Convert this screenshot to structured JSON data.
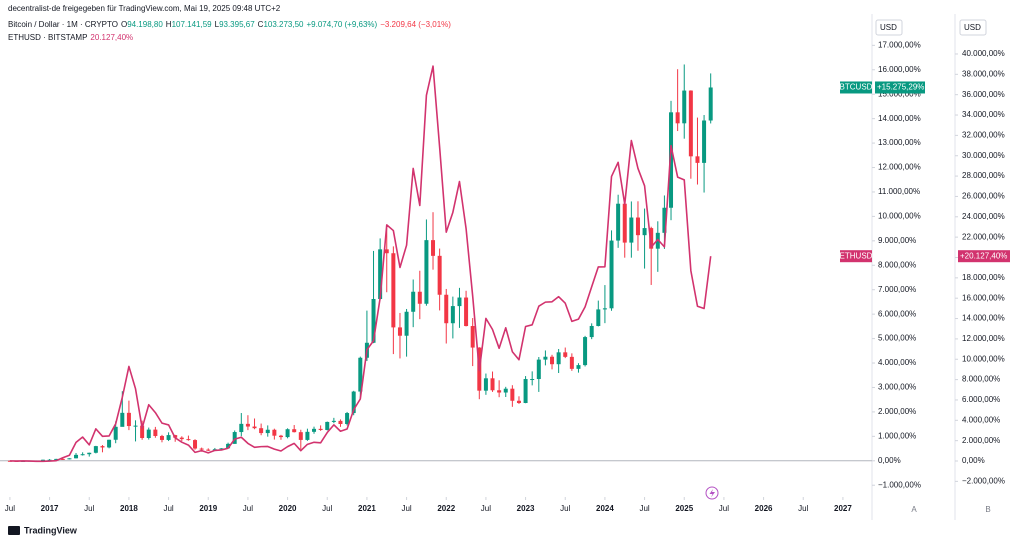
{
  "header": {
    "share": "decentralist-de freigegeben für TradingView.com, Mai 19, 2025 09:48 UTC+2",
    "symbol": "Bitcoin / Dollar · 1M · CRYPTO",
    "ohlc": [
      {
        "key": "O",
        "value": "94.198,80"
      },
      {
        "key": "H",
        "value": "107.141,59"
      },
      {
        "key": "L",
        "value": "93.395,67"
      },
      {
        "key": "C",
        "value": "103.273,50"
      }
    ],
    "change": "+9.074,70 (+9,63%)",
    "change2": "−3.209,64 (−3,01%)",
    "compare": "ETHUSD · BITSTAMP",
    "compare_value": "20.127,40%"
  },
  "axis_headers": [
    "USD",
    "USD"
  ],
  "axis_letters": [
    "A",
    "B"
  ],
  "footer": "TradingView",
  "chart_data": {
    "type": "candlestick",
    "xlim": [
      -1.5,
      130.4
    ],
    "xticks": [
      {
        "value": 0,
        "label": "Jul"
      },
      {
        "value": 6,
        "label": "2017"
      },
      {
        "value": 12,
        "label": "Jul"
      },
      {
        "value": 18,
        "label": "2018"
      },
      {
        "value": 24,
        "label": "Jul"
      },
      {
        "value": 30,
        "label": "2019"
      },
      {
        "value": 36,
        "label": "Jul"
      },
      {
        "value": 42,
        "label": "2020"
      },
      {
        "value": 48,
        "label": "Jul"
      },
      {
        "value": 54,
        "label": "2021"
      },
      {
        "value": 60,
        "label": "Jul"
      },
      {
        "value": 66,
        "label": "2022"
      },
      {
        "value": 72,
        "label": "Jul"
      },
      {
        "value": 78,
        "label": "2023"
      },
      {
        "value": 84,
        "label": "Jul"
      },
      {
        "value": 90,
        "label": "2024"
      },
      {
        "value": 96,
        "label": "Jul"
      },
      {
        "value": 102,
        "label": "2025"
      },
      {
        "value": 108,
        "label": "Jul"
      },
      {
        "value": 114,
        "label": "2026"
      },
      {
        "value": 120,
        "label": "Jul"
      },
      {
        "value": 126,
        "label": "2027"
      }
    ],
    "ylim": [
      -1400,
      17300
    ],
    "yticks": [
      {
        "value": -1000,
        "label": "−1.000,00%"
      },
      {
        "value": 0,
        "label": "0,00%"
      },
      {
        "value": 1000,
        "label": "1.000,00%"
      },
      {
        "value": 2000,
        "label": "2.000,00%"
      },
      {
        "value": 3000,
        "label": "3.000,00%"
      },
      {
        "value": 4000,
        "label": "4.000,00%"
      },
      {
        "value": 5000,
        "label": "5.000,00%"
      },
      {
        "value": 6000,
        "label": "6.000,00%"
      },
      {
        "value": 7000,
        "label": "7.000,00%"
      },
      {
        "value": 8000,
        "label": "8.000,00%"
      },
      {
        "value": 9000,
        "label": "9.000,00%"
      },
      {
        "value": 10000,
        "label": "10.000,00%"
      },
      {
        "value": 11000,
        "label": "11.000,00%"
      },
      {
        "value": 12000,
        "label": "12.000,00%"
      },
      {
        "value": 13000,
        "label": "13.000,00%"
      },
      {
        "value": 14000,
        "label": "14.000,00%"
      },
      {
        "value": 15000,
        "label": "15.000,00%"
      },
      {
        "value": 16000,
        "label": "16.000,00%"
      },
      {
        "value": 17000,
        "label": "17.000,00%"
      }
    ],
    "y2lim": [
      -3340,
      41570
    ],
    "y2ticks": [
      {
        "value": -2000,
        "label": "−2.000,00%"
      },
      {
        "value": 0,
        "label": "0,00%"
      },
      {
        "value": 2000,
        "label": "2.000,00%"
      },
      {
        "value": 4000,
        "label": "4.000,00%"
      },
      {
        "value": 6000,
        "label": "6.000,00%"
      },
      {
        "value": 8000,
        "label": "8.000,00%"
      },
      {
        "value": 10000,
        "label": "10.000,00%"
      },
      {
        "value": 12000,
        "label": "12.000,00%"
      },
      {
        "value": 14000,
        "label": "14.000,00%"
      },
      {
        "value": 16000,
        "label": "16.000,00%"
      },
      {
        "value": 18000,
        "label": "18.000,00%"
      },
      {
        "value": 20000,
        "label": "20.000,00%"
      },
      {
        "value": 22000,
        "label": "22.000,00%"
      },
      {
        "value": 24000,
        "label": "24.000,00%"
      },
      {
        "value": 26000,
        "label": "26.000,00%"
      },
      {
        "value": 28000,
        "label": "28.000,00%"
      },
      {
        "value": 30000,
        "label": "30.000,00%"
      },
      {
        "value": 32000,
        "label": "32.000,00%"
      },
      {
        "value": 34000,
        "label": "34.000,00%"
      },
      {
        "value": 36000,
        "label": "36.000,00%"
      },
      {
        "value": 38000,
        "label": "38.000,00%"
      },
      {
        "value": 40000,
        "label": "40.000,00%"
      }
    ],
    "grid": false,
    "zero_line": true,
    "series": [
      {
        "name": "BTCUSD",
        "up_color": "#089981",
        "down_color": "#f23645",
        "value_label": "+15.275,29%",
        "open": [
          0,
          -7,
          -14,
          -9,
          4,
          10,
          43,
          44,
          77,
          61,
          101,
          242,
          269,
          328,
          600,
          546,
          860,
          1389,
          1962,
          1422,
          1438,
          932,
          1276,
          1015,
          853,
          1051,
          947,
          887,
          848,
          501,
          457,
          415,
          473,
          510,
          692,
          1176,
          1511,
          1401,
          1334,
          1134,
          1270,
          1027,
          970,
          1292,
          1171,
          854,
          1185,
          1307,
          1261,
          1590,
          1634,
          1505,
          1954,
          2833,
          4216,
          4829,
          6620,
          8652,
          8493,
          5458,
          5117,
          6098,
          6917,
          6425,
          9029,
          8386,
          6794,
          5629,
          6330,
          6680,
          5514,
          4633,
          2869,
          3375,
          2885,
          2793,
          2950,
          2456,
          2364,
          3345,
          3346,
          4140,
          4258,
          3952,
          4438,
          4252,
          3762,
          3915,
          5062,
          5516,
          6194,
          6239,
          9011,
          10519,
          8928,
          9954,
          9232,
          9522,
          8679,
          9328,
          10354,
          14259,
          13809,
          15149,
          12458,
          12190,
          13924
        ],
        "high": [
          4,
          -8,
          -8,
          10,
          13,
          46,
          71,
          80,
          94,
          105,
          317,
          347,
          335,
          612,
          644,
          863,
          1612,
          2848,
          2461,
          1657,
          1642,
          1359,
          1387,
          1061,
          1165,
          1061,
          1002,
          1031,
          883,
          540,
          510,
          525,
          516,
          741,
          1240,
          1954,
          1865,
          1731,
          1523,
          1448,
          1314,
          1061,
          1329,
          1463,
          1270,
          1314,
          1396,
          1448,
          1605,
          1757,
          1694,
          1999,
          2863,
          4262,
          6145,
          8587,
          9100,
          9562,
          8773,
          6049,
          6212,
          7418,
          7776,
          9875,
          10172,
          8684,
          7031,
          6718,
          7076,
          6957,
          5840,
          4649,
          3570,
          3652,
          3294,
          3026,
          3093,
          2639,
          3466,
          3659,
          4247,
          4515,
          4337,
          4575,
          4634,
          4396,
          3994,
          5111,
          5624,
          6555,
          7190,
          9428,
          10887,
          10738,
          10612,
          10619,
          10321,
          9577,
          9800,
          10857,
          14728,
          16023,
          16217,
          15160,
          14043,
          14148,
          15851
        ],
        "low": [
          -9,
          -20,
          -12,
          -11,
          3,
          10,
          12,
          37,
          32,
          59,
          98,
          213,
          172,
          302,
          347,
          510,
          719,
          1523,
          1255,
          793,
          860,
          868,
          942,
          756,
          808,
          778,
          808,
          823,
          451,
          369,
          399,
          403,
          451,
          503,
          696,
          1009,
          1255,
          1292,
          1046,
          987,
          868,
          860,
          920,
          1158,
          473,
          816,
          1106,
          1225,
          1240,
          1538,
          1389,
          1448,
          1865,
          2520,
          4083,
          4813,
          6600,
          6897,
          4366,
          4188,
          4262,
          5468,
          5795,
          6346,
          7820,
          6153,
          4798,
          5006,
          5438,
          5498,
          3875,
          2520,
          2699,
          2818,
          2602,
          2610,
          2208,
          2327,
          2356,
          3086,
          2818,
          3905,
          3741,
          3592,
          4202,
          3681,
          3607,
          3860,
          4977,
          5498,
          5632,
          6138,
          8713,
          8311,
          8311,
          8594,
          7865,
          7195,
          7731,
          8669,
          9845,
          13493,
          13180,
          11542,
          11304,
          10976,
          13804
        ],
        "close": [
          -7,
          -14,
          -9,
          4,
          10,
          43,
          44,
          77,
          61,
          101,
          242,
          269,
          328,
          600,
          546,
          860,
          1389,
          1962,
          1422,
          1438,
          932,
          1276,
          1015,
          853,
          1051,
          947,
          887,
          848,
          501,
          457,
          415,
          473,
          510,
          692,
          1176,
          1511,
          1401,
          1334,
          1134,
          1270,
          1027,
          970,
          1292,
          1171,
          854,
          1185,
          1307,
          1261,
          1590,
          1634,
          1505,
          1954,
          2833,
          4216,
          4829,
          6620,
          8652,
          8493,
          5458,
          5117,
          6098,
          6917,
          6425,
          9029,
          8386,
          6794,
          5629,
          6330,
          6680,
          5514,
          4633,
          2869,
          3375,
          2885,
          2793,
          2950,
          2456,
          2364,
          3345,
          3346,
          4140,
          4258,
          3952,
          4438,
          4252,
          3762,
          3915,
          5062,
          5516,
          6194,
          6239,
          9011,
          10519,
          8928,
          9954,
          9232,
          9522,
          8679,
          9328,
          10354,
          14259,
          13809,
          15149,
          12458,
          12190,
          13924,
          15275.29
        ]
      },
      {
        "name": "ETHUSD",
        "type": "line",
        "axis": "y2",
        "color": "#d2336e",
        "value_label": "+20.127,40%",
        "values": [
          5,
          -5,
          11,
          -8,
          -27,
          -33,
          -10,
          32,
          320,
          564,
          1833,
          2354,
          1581,
          3161,
          2429,
          2463,
          3656,
          6253,
          9295,
          7093,
          3236,
          5530,
          4757,
          3724,
          3547,
          2278,
          1850,
          1564,
          850,
          1018,
          799,
          1043,
          1085,
          1261,
          2152,
          2337,
          1732,
          1345,
          1413,
          1429,
          1169,
          984,
          1413,
          1732,
          1018,
          1639,
          1841,
          1791,
          2799,
          3555,
          2925,
          3144,
          5043,
          6093,
          10934,
          11816,
          16018,
          23203,
          22647,
          19018,
          21211,
          28749,
          25110,
          35934,
          38807,
          30824,
          22488,
          24438,
          27463,
          22841,
          16203,
          8892,
          14018,
          12925,
          11076,
          13093,
          10740,
          9950,
          13219,
          13387,
          15211,
          15614,
          15648,
          16152,
          15505,
          13723,
          13942,
          15152,
          17127,
          19076,
          19085,
          27967,
          29354,
          25236,
          31497,
          28749,
          27043,
          21018,
          21766,
          21043,
          30992,
          27900,
          27631,
          18698,
          15211,
          14984,
          20127.4
        ]
      }
    ]
  }
}
